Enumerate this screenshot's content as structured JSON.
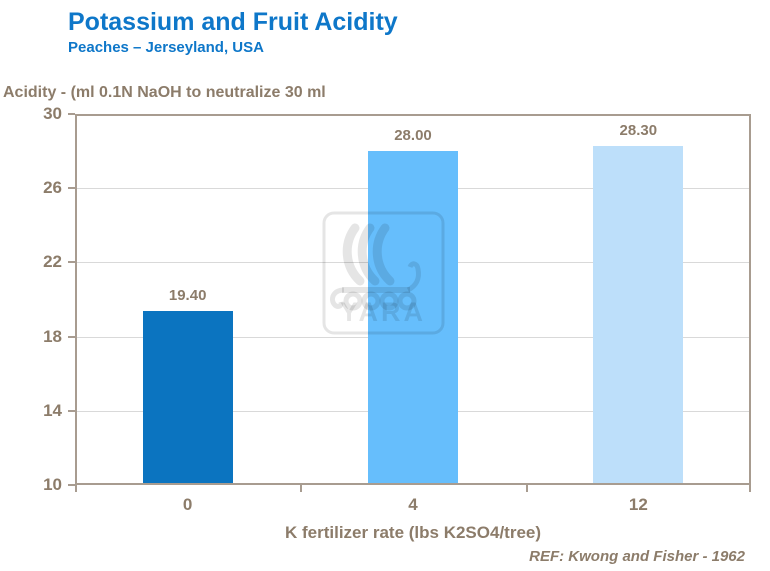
{
  "slide": {
    "title": "Potassium and Fruit Acidity",
    "subtitle": "Peaches – Jerseyland, USA",
    "reference": "REF: Kwong and Fisher - 1962"
  },
  "watermark": {
    "text": "YARA"
  },
  "colors": {
    "title_blue": "#0e77c9",
    "text_brown": "#8c7c6a",
    "axis_frame": "#a89c90",
    "gridline": "#d9d9d9",
    "bar_dark_blue": "#0b74c0",
    "bar_medium_blue": "#66befc",
    "bar_light_blue": "#bddffa"
  },
  "chart_data": {
    "type": "bar",
    "title": "Potassium and Fruit Acidity",
    "subtitle": "Peaches – Jerseyland, USA",
    "categories": [
      "0",
      "4",
      "12"
    ],
    "values": [
      19.4,
      28.0,
      28.3
    ],
    "value_labels": [
      "19.40",
      "28.00",
      "28.30"
    ],
    "bar_colors": [
      "#0b74c0",
      "#66befc",
      "#bddffa"
    ],
    "xlabel": "K fertilizer rate (lbs K2SO4/tree)",
    "ylabel": "Acidity - (ml 0.1N NaOH to neutralize 30 ml",
    "ylim": [
      10,
      30
    ],
    "yticks": [
      30,
      26,
      22,
      18,
      14,
      10
    ],
    "grid": true,
    "legend": false
  }
}
